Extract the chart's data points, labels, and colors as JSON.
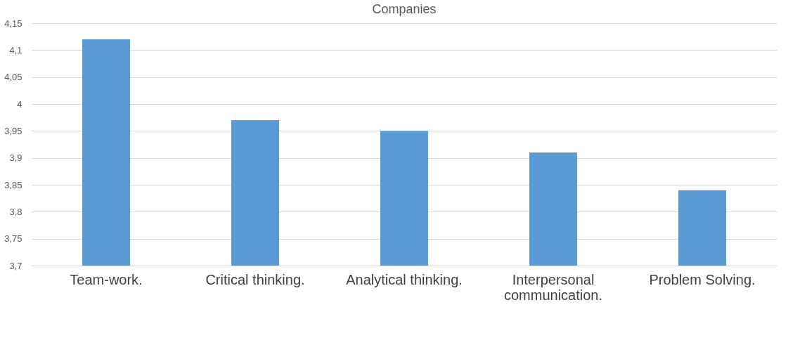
{
  "chart_data": {
    "type": "bar",
    "title": "Companies",
    "categories": [
      "Team-work.",
      "Critical thinking.",
      "Analytical thinking.",
      "Interpersonal communication.",
      "Problem Solving."
    ],
    "values": [
      4.12,
      3.97,
      3.95,
      3.91,
      3.84
    ],
    "color": "#5b9bd5",
    "ylim": [
      3.7,
      4.15
    ],
    "yticks": [
      {
        "value": 3.7,
        "label": "3,7"
      },
      {
        "value": 3.75,
        "label": "3,75"
      },
      {
        "value": 3.8,
        "label": "3,8"
      },
      {
        "value": 3.85,
        "label": "3,85"
      },
      {
        "value": 3.9,
        "label": "3,9"
      },
      {
        "value": 3.95,
        "label": "3,95"
      },
      {
        "value": 4,
        "label": "4"
      },
      {
        "value": 4.05,
        "label": "4,05"
      },
      {
        "value": 4.1,
        "label": "4,1"
      },
      {
        "value": 4.15,
        "label": "4,15"
      }
    ],
    "grid": "y"
  }
}
